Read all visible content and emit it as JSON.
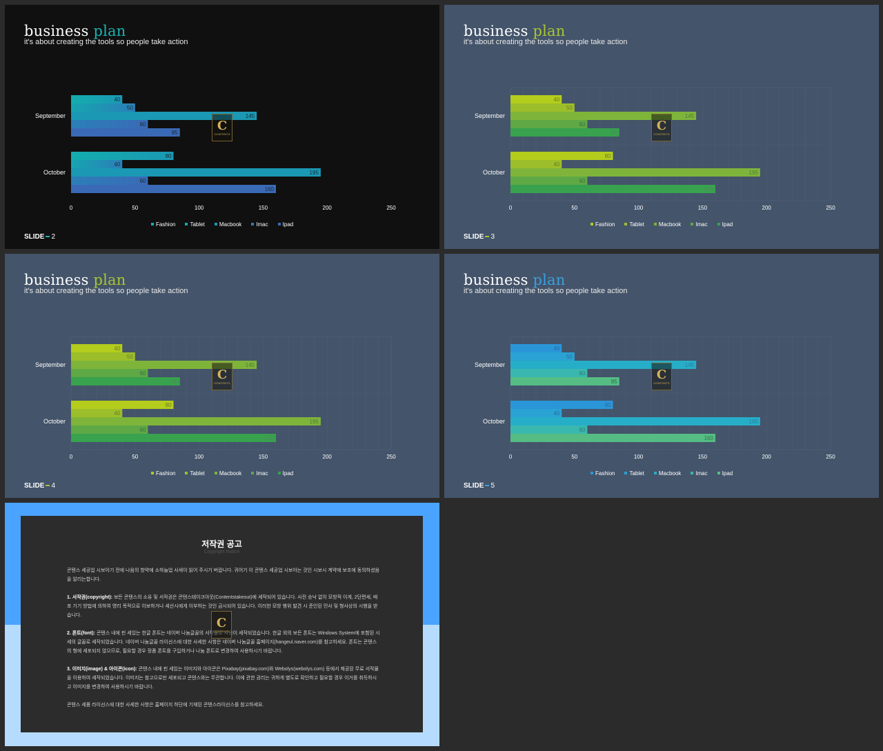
{
  "slides": [
    {
      "title_main": "business",
      "title_accent": "plan",
      "subtitle": "it's about creating the tools so people take action",
      "footer_label": "SLIDE",
      "footer_number": "2",
      "accent_color": "#1ab3b3",
      "background": "#101010",
      "grid": false,
      "bar_colors": [
        "#14adad",
        "#16a5b0",
        "#1a98b4",
        "#2b7fb8",
        "#3a6ab6"
      ],
      "bar_gradient_to": [
        "#1a98b4",
        "#2b7fb8",
        "#1a98b4",
        "#3a6ab6",
        "#3a6ab6"
      ],
      "label_colors": [
        "#1a2830",
        "#1a2830",
        "#1a2830",
        "#1a2830",
        "#1a2830"
      ]
    },
    {
      "title_main": "business",
      "title_accent": "plan",
      "subtitle": "it's about creating the tools so people take action",
      "footer_label": "SLIDE",
      "footer_number": "3",
      "accent_color": "#a8c632",
      "background": "#44546a",
      "grid": true,
      "bar_colors": [
        "#b4cc1c",
        "#9cbe2a",
        "#7eb43a",
        "#5ea845",
        "#38a24e"
      ],
      "bar_gradient_to": [
        "#b4cc1c",
        "#9cbe2a",
        "#7eb43a",
        "#5ea845",
        "#38a24e"
      ],
      "label_colors": [
        "#6b7a2a",
        "#6b7a2a",
        "#4d7a3a",
        "#3f6e45",
        "#4f8a5a"
      ]
    },
    {
      "title_main": "business",
      "title_accent": "plan",
      "subtitle": "it's about creating the tools so people take action",
      "footer_label": "SLIDE",
      "footer_number": "4",
      "accent_color": "#a8c632",
      "background": "#44546a",
      "grid": true,
      "bar_colors": [
        "#b4cc1c",
        "#9cbe2a",
        "#7eb43a",
        "#5ea845",
        "#38a24e"
      ],
      "bar_gradient_to": [
        "#b4cc1c",
        "#9cbe2a",
        "#7eb43a",
        "#5ea845",
        "#38a24e"
      ],
      "label_colors": [
        "#6b7a2a",
        "#6b7a2a",
        "#4d7a3a",
        "#3f6e45",
        "#4f8a5a"
      ]
    },
    {
      "title_main": "business",
      "title_accent": "plan",
      "subtitle": "it's about creating the tools so people take action",
      "footer_label": "SLIDE",
      "footer_number": "5",
      "accent_color": "#3aa0dc",
      "background": "#44546a",
      "grid": true,
      "bar_colors": [
        "#2a96d8",
        "#2aa2d4",
        "#26aec8",
        "#3ab7ae",
        "#55bd84"
      ],
      "bar_gradient_to": [
        "#2a96d8",
        "#2aa2d4",
        "#26aec8",
        "#3ab7ae",
        "#55bd84"
      ],
      "label_colors": [
        "#2a6a9a",
        "#2a6a9a",
        "#2a7a9a",
        "#2a7a72",
        "#2f6f4a"
      ]
    }
  ],
  "watermark": {
    "letter": "C",
    "text": "CONTENTS"
  },
  "chart_data": {
    "type": "bar",
    "orientation": "horizontal",
    "categories": [
      "September",
      "October"
    ],
    "series": [
      {
        "name": "Fashion",
        "values": [
          40,
          80
        ]
      },
      {
        "name": "Tablet",
        "values": [
          50,
          40
        ]
      },
      {
        "name": "Macbook",
        "values": [
          145,
          195
        ]
      },
      {
        "name": "Imac",
        "values": [
          60,
          60
        ]
      },
      {
        "name": "Ipad",
        "values": [
          85,
          160
        ]
      }
    ],
    "xlim": [
      0,
      250
    ],
    "xticks": [
      "0",
      "50",
      "100",
      "150",
      "200",
      "250"
    ],
    "legend": "bottom"
  },
  "copyright": {
    "title": "저작권 공고",
    "subtitle": "Copyright Notice",
    "intro": "콘텐스 세공업 시보아기 전에 나음의 항약에 소하늘업 사세이 읽어 주시기 버랍니다. 귀어기 이 콘텐스 세공업 시보아는 것인 시보시 계약에 보조에 동의하셨음을 알리는합니다.",
    "items": [
      {
        "head": "1. 서작권(copyright):",
        "text": "보든 콘텐스의 소유 및 서작권은 콘텐스테이크아웃(Contentstakeout)에 세작되어 있습니다. 사전 승낙 없이 모방적 이게, 2단편세, 배포 기기 방법에 의하여 영리 목적으로 이보하거나 세산시에게 이부하는 것인 금시되어 있습니다. 이러한 모방 행위 발견 시 준인된 민사 및 형사상의 시행을 받습니다."
      },
      {
        "head": "2. 폰트(font):",
        "text": "콘텐스 내에 핀 세있는 한글 폰트는 네이버 나눔글꼴의 서작물로 사용이 세작되었습니다. 한글 외의 보든 폰트는 Windows System에 포함된 시세의 글꼴로 세작되었습니다. 네이버 나눔글꼴 라이선스에 대한 사세한 사항은 네이버 나눔글꼴 홈페이지(hangeul.naver.com)를 참고하세요. 폰트는 콘텐스의 형에 세포되지 않으므로, 필요할 경우 정품 폰트를 구입하거나 나눔 폰트로 변경하여 사용하시기 바랍니다."
      },
      {
        "head": "3. 이미지(image) & 아이콘(icon):",
        "text": "콘텐스 내에 핀 세있는 이미지와 아이콘은 Pixabay(pixabay.com)와 Webolys(webolys.com) 등에서 제공된 무료 서작물을 이용하여 세작되었습니다. 이미지는 참고으로만 세포되고 콘텐스와는 무관합니다. 이에 관한 권리는 귀하게 별도로 확인하고 필요할 경우 이거를 취득하시고 이미지를 변경하여 사용하시기 바랍니다."
      }
    ],
    "outro": "콘텐스 세품 라이선스에 대한 사세한 사항은 홈페이지 하단에 기재된 콘텐스라이선스를 참고하세요."
  }
}
